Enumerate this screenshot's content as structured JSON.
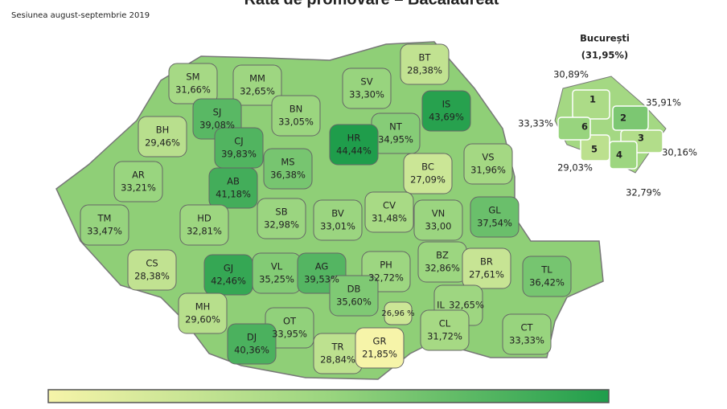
{
  "title": "Rata de promovare – Bacalaureat",
  "subtitle": "Sesiunea august-septembrie 2019",
  "palette": [
    "#f6f4a9",
    "#9ad57f",
    "#1f9d4b"
  ],
  "counties": [
    {
      "code": "SM",
      "value": 31.66,
      "label": "31,66%"
    },
    {
      "code": "MM",
      "value": 32.65,
      "label": "32,65%"
    },
    {
      "code": "SV",
      "value": 33.3,
      "label": "33,30%"
    },
    {
      "code": "BT",
      "value": 28.38,
      "label": "28,38%"
    },
    {
      "code": "IS",
      "value": 43.69,
      "label": "43,69%"
    },
    {
      "code": "SJ",
      "value": 39.08,
      "label": "39,08%"
    },
    {
      "code": "BN",
      "value": 33.05,
      "label": "33,05%"
    },
    {
      "code": "NT",
      "value": 34.95,
      "label": "34,95%"
    },
    {
      "code": "BH",
      "value": 29.46,
      "label": "29,46%"
    },
    {
      "code": "CJ",
      "value": 39.83,
      "label": "39,83%"
    },
    {
      "code": "HR",
      "value": 44.44,
      "label": "44,44%"
    },
    {
      "code": "BC",
      "value": 27.09,
      "label": "27,09%"
    },
    {
      "code": "VS",
      "value": 31.96,
      "label": "31,96%"
    },
    {
      "code": "MS",
      "value": 36.38,
      "label": "36,38%"
    },
    {
      "code": "AR",
      "value": 33.21,
      "label": "33,21%"
    },
    {
      "code": "AB",
      "value": 41.18,
      "label": "41,18%"
    },
    {
      "code": "TM",
      "value": 33.47,
      "label": "33,47%"
    },
    {
      "code": "HD",
      "value": 32.81,
      "label": "32,81%"
    },
    {
      "code": "SB",
      "value": 32.98,
      "label": "32,98%"
    },
    {
      "code": "BV",
      "value": 33.01,
      "label": "33,01%"
    },
    {
      "code": "CV",
      "value": 31.48,
      "label": "31,48%"
    },
    {
      "code": "VN",
      "value": 33.0,
      "label": "33,00"
    },
    {
      "code": "GL",
      "value": 37.54,
      "label": "37,54%"
    },
    {
      "code": "CS",
      "value": 28.38,
      "label": "28,38%"
    },
    {
      "code": "GJ",
      "value": 42.46,
      "label": "42,46%"
    },
    {
      "code": "VL",
      "value": 35.25,
      "label": "35,25%"
    },
    {
      "code": "AG",
      "value": 39.53,
      "label": "39,53%"
    },
    {
      "code": "PH",
      "value": 32.72,
      "label": "32,72%"
    },
    {
      "code": "BZ",
      "value": 32.86,
      "label": "32,86%"
    },
    {
      "code": "BR",
      "value": 27.61,
      "label": "27,61%"
    },
    {
      "code": "TL",
      "value": 36.42,
      "label": "36,42%"
    },
    {
      "code": "DB",
      "value": 35.6,
      "label": "35,60%"
    },
    {
      "code": "MH",
      "value": 29.6,
      "label": "29,60%"
    },
    {
      "code": "IL",
      "value": 32.65,
      "label": "32,65%"
    },
    {
      "code": "OT",
      "value": 33.95,
      "label": "33,95%"
    },
    {
      "code": "DJ",
      "value": 40.36,
      "label": "40,36%"
    },
    {
      "code": "TR",
      "value": 28.84,
      "label": "28,84%"
    },
    {
      "code": "GR",
      "value": 21.85,
      "label": "21,85%"
    },
    {
      "code": "CL",
      "value": 31.72,
      "label": "31,72%"
    },
    {
      "code": "CT",
      "value": 33.33,
      "label": "33,33%"
    }
  ],
  "ilfov": {
    "value": 26.96,
    "label": "26,96 %"
  },
  "bucharest": {
    "name": "București",
    "value": 31.95,
    "label": "(31,95%)",
    "sectors": [
      {
        "number": "1",
        "value": 30.89,
        "label": "30,89%"
      },
      {
        "number": "2",
        "value": 35.91,
        "label": "35,91%"
      },
      {
        "number": "3",
        "value": 30.16,
        "label": "30,16%"
      },
      {
        "number": "4",
        "value": 32.79,
        "label": "32,79%"
      },
      {
        "number": "5",
        "value": 29.03,
        "label": "29,03%"
      },
      {
        "number": "6",
        "value": 33.33,
        "label": "33,33%"
      }
    ]
  }
}
